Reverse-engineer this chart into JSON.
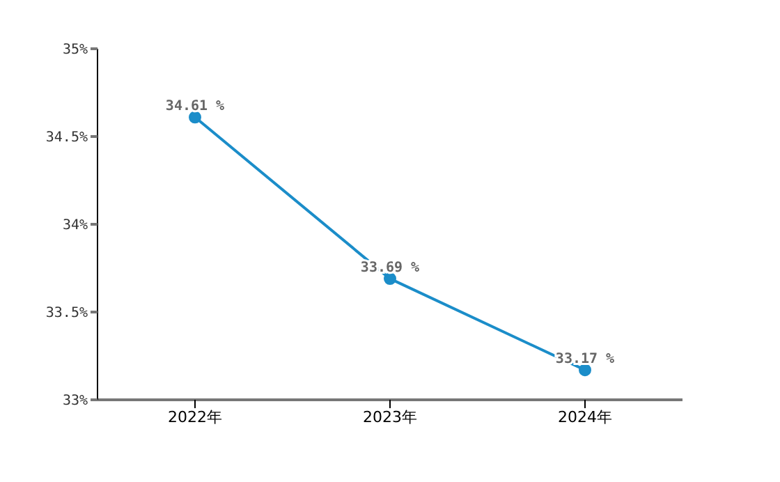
{
  "chart_data": {
    "type": "line",
    "categories": [
      "2022年",
      "2023年",
      "2024年"
    ],
    "series": [
      {
        "color": "#1b8dc9",
        "values": [
          34.61,
          33.69,
          33.17
        ],
        "value_labels": [
          "34.61 %",
          "33.69 %",
          "33.17 %"
        ]
      }
    ],
    "ylim": [
      33,
      35
    ],
    "yticks": [
      {
        "value": 33,
        "label": "33%"
      },
      {
        "value": 33.5,
        "label": "33.5%"
      },
      {
        "value": 34,
        "label": "34%"
      },
      {
        "value": 34.5,
        "label": "34.5%"
      },
      {
        "value": 35,
        "label": "35%"
      }
    ],
    "marker": "circle",
    "line_style": "solid",
    "grid": false,
    "legend": false
  }
}
